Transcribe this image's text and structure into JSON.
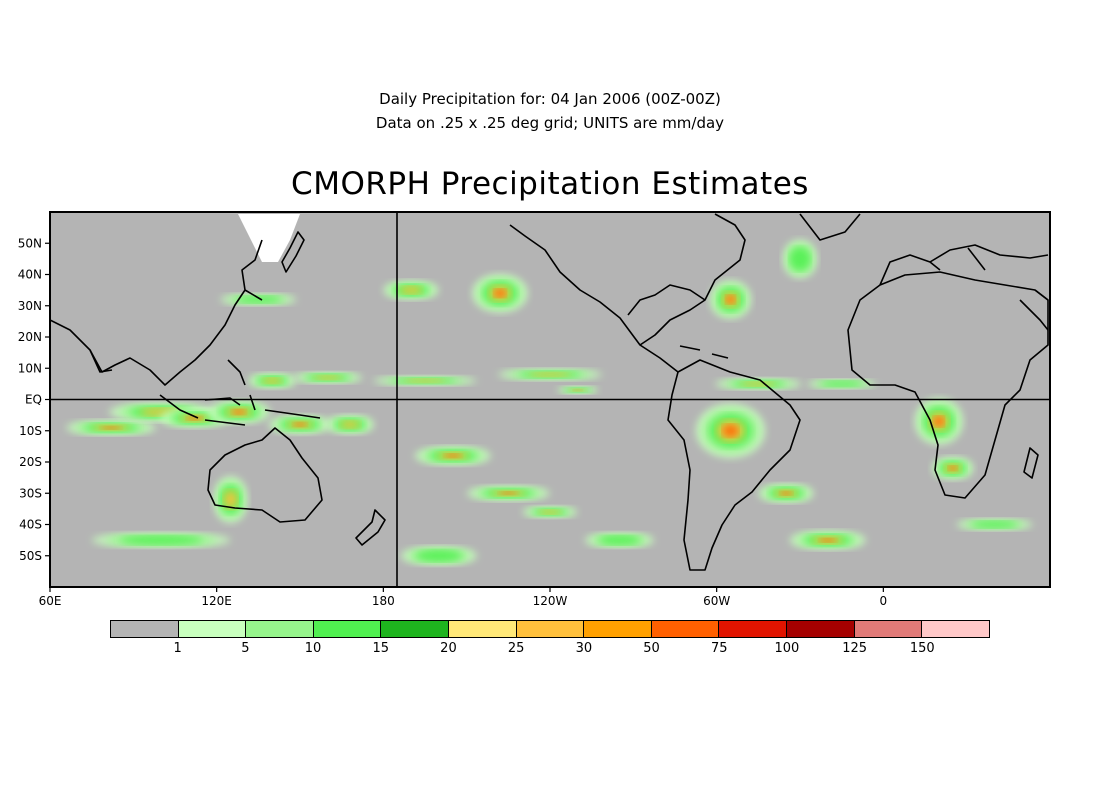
{
  "header": {
    "subtitle_line1": "Daily Precipitation for: 04 Jan 2006 (00Z-00Z)",
    "subtitle_line2": "Data on .25 x .25 deg grid; UNITS are mm/day",
    "title": "CMORPH Precipitation Estimates"
  },
  "map": {
    "projection": "equirectangular",
    "lon_range": [
      60,
      420
    ],
    "lat_range": [
      -60,
      60
    ],
    "land_color": "#b4b4b4",
    "lat_labels": [
      "50N",
      "40N",
      "30N",
      "20N",
      "10N",
      "EQ",
      "10S",
      "20S",
      "30S",
      "40S",
      "50S"
    ],
    "lat_values": [
      50,
      40,
      30,
      20,
      10,
      0,
      -10,
      -20,
      -30,
      -40,
      -50
    ],
    "lon_labels": [
      "60E",
      "120E",
      "180",
      "120W",
      "60W",
      "0"
    ],
    "lon_values": [
      60,
      120,
      180,
      240,
      300,
      360
    ],
    "reference_lines": [
      "equator",
      "180-meridian"
    ]
  },
  "legend": {
    "colors": [
      "#b4b4b4",
      "#c8ffbe",
      "#96f58c",
      "#50f050",
      "#1eb41e",
      "#ffe878",
      "#ffc03c",
      "#ffa000",
      "#ff6000",
      "#e11400",
      "#a50000",
      "#e17a78",
      "#ffc8c8"
    ],
    "labels": [
      "1",
      "5",
      "10",
      "15",
      "20",
      "25",
      "30",
      "50",
      "75",
      "100",
      "125",
      "150"
    ]
  },
  "rain_bands": [
    {
      "lon": 82,
      "lat": -9,
      "w": 26,
      "h": 4,
      "level": 3
    },
    {
      "lon": 100,
      "lat": -4,
      "w": 30,
      "h": 5,
      "level": 2
    },
    {
      "lon": 112,
      "lat": -6,
      "w": 20,
      "h": 5,
      "level": 3
    },
    {
      "lon": 128,
      "lat": -4,
      "w": 18,
      "h": 6,
      "level": 3
    },
    {
      "lon": 150,
      "lat": -8,
      "w": 18,
      "h": 5,
      "level": 3
    },
    {
      "lon": 168,
      "lat": -8,
      "w": 14,
      "h": 5,
      "level": 2
    },
    {
      "lon": 140,
      "lat": 6,
      "w": 14,
      "h": 4,
      "level": 2
    },
    {
      "lon": 160,
      "lat": 7,
      "w": 20,
      "h": 3,
      "level": 2
    },
    {
      "lon": 195,
      "lat": 6,
      "w": 30,
      "h": 2.5,
      "level": 2
    },
    {
      "lon": 240,
      "lat": 8,
      "w": 30,
      "h": 3,
      "level": 2
    },
    {
      "lon": 315,
      "lat": 5,
      "w": 25,
      "h": 3,
      "level": 2
    },
    {
      "lon": 345,
      "lat": 5,
      "w": 20,
      "h": 2.5,
      "level": 1
    },
    {
      "lon": 205,
      "lat": -18,
      "w": 22,
      "h": 5,
      "level": 3
    },
    {
      "lon": 225,
      "lat": -30,
      "w": 24,
      "h": 4,
      "level": 3
    },
    {
      "lon": 240,
      "lat": -36,
      "w": 16,
      "h": 3,
      "level": 2
    },
    {
      "lon": 305,
      "lat": -10,
      "w": 20,
      "h": 14,
      "level": 3
    },
    {
      "lon": 325,
      "lat": -30,
      "w": 16,
      "h": 5,
      "level": 3
    },
    {
      "lon": 340,
      "lat": -45,
      "w": 22,
      "h": 5,
      "level": 3
    },
    {
      "lon": 380,
      "lat": -7,
      "w": 14,
      "h": 12,
      "level": 3
    },
    {
      "lon": 385,
      "lat": -22,
      "w": 12,
      "h": 6,
      "level": 3
    },
    {
      "lon": 400,
      "lat": -40,
      "w": 22,
      "h": 3,
      "level": 1
    },
    {
      "lon": 222,
      "lat": 34,
      "w": 16,
      "h": 10,
      "level": 3
    },
    {
      "lon": 305,
      "lat": 32,
      "w": 12,
      "h": 10,
      "level": 3
    },
    {
      "lon": 190,
      "lat": 35,
      "w": 16,
      "h": 5,
      "level": 2
    },
    {
      "lon": 135,
      "lat": 32,
      "w": 22,
      "h": 3,
      "level": 1
    },
    {
      "lon": 330,
      "lat": 45,
      "w": 10,
      "h": 10,
      "level": 1
    },
    {
      "lon": 100,
      "lat": -45,
      "w": 40,
      "h": 4,
      "level": 1
    },
    {
      "lon": 125,
      "lat": -32,
      "w": 10,
      "h": 12,
      "level": 2
    },
    {
      "lon": 200,
      "lat": -50,
      "w": 22,
      "h": 5,
      "level": 1
    },
    {
      "lon": 265,
      "lat": -45,
      "w": 20,
      "h": 4,
      "level": 1
    },
    {
      "lon": 250,
      "lat": 3,
      "w": 12,
      "h": 2,
      "level": 3
    }
  ]
}
